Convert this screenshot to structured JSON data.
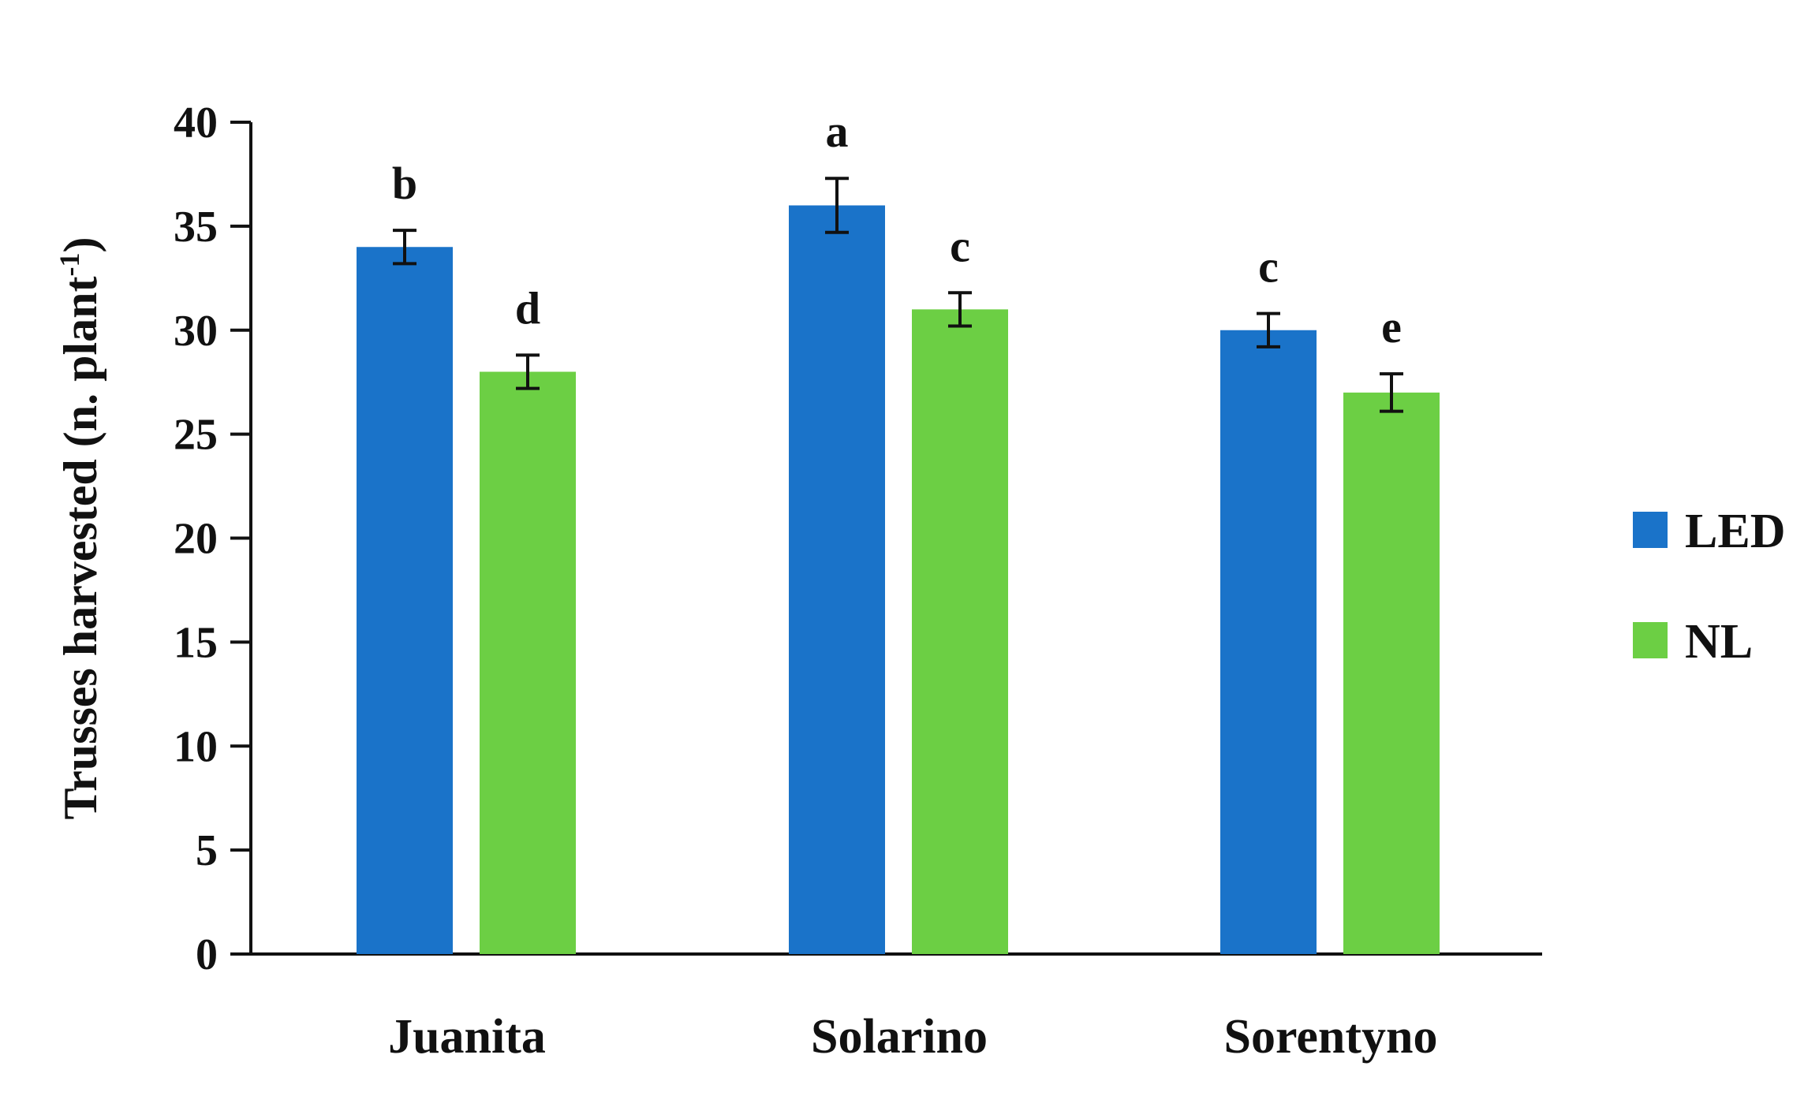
{
  "chart_data": {
    "type": "bar",
    "categories": [
      "Juanita",
      "Solarino",
      "Sorentyno"
    ],
    "series": [
      {
        "name": "LED",
        "color": "#1a73c9",
        "values": [
          34.0,
          36.0,
          30.0
        ],
        "errors": [
          0.8,
          1.3,
          0.8
        ],
        "letters": [
          "b",
          "a",
          "c"
        ]
      },
      {
        "name": "NL",
        "color": "#6ccf44",
        "values": [
          28.0,
          31.0,
          27.0
        ],
        "errors": [
          0.8,
          0.8,
          0.9
        ],
        "letters": [
          "d",
          "c",
          "e"
        ]
      }
    ],
    "ylabel": {
      "main": "Trusses harvested (n. plant",
      "sup": "-1",
      "close": ")"
    },
    "ylim": [
      0,
      40
    ],
    "yticks": [
      0,
      5,
      10,
      15,
      20,
      25,
      30,
      35,
      40
    ],
    "grid": false,
    "legend_position": "right"
  }
}
